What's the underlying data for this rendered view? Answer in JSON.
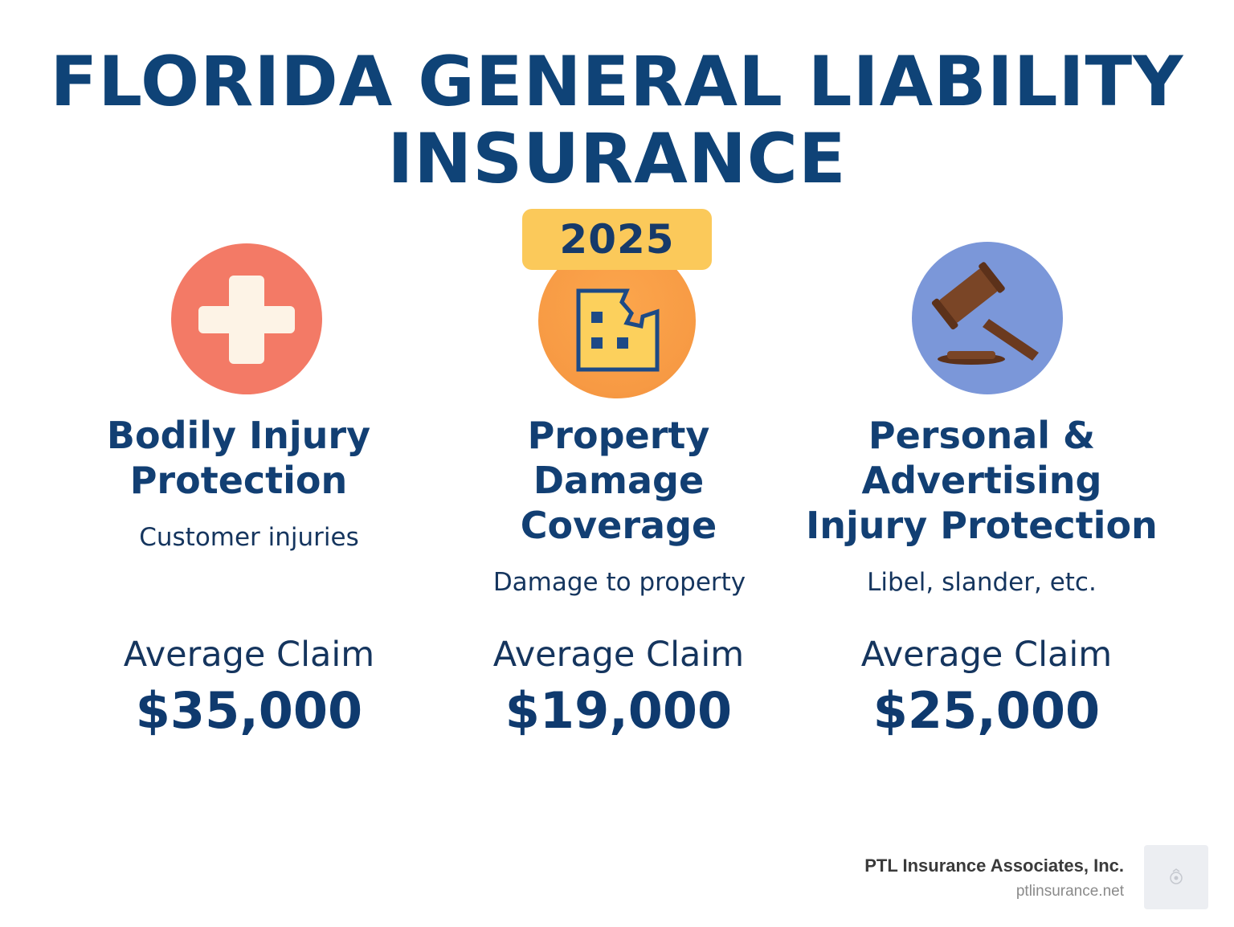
{
  "title": {
    "line1": "FLORIDA GENERAL LIABILITY",
    "line2": "INSURANCE"
  },
  "year_badge": "2025",
  "coverages": [
    {
      "icon": "medical-cross-icon",
      "heading_lines": [
        "Bodily Injury",
        "Protection"
      ],
      "description": "Customer injuries",
      "claim_label": "Average Claim",
      "claim_value": "$35,000",
      "color": "#f37a66"
    },
    {
      "icon": "damaged-building-icon",
      "heading_lines": [
        "Property",
        "Damage",
        "Coverage"
      ],
      "description": "Damage to property",
      "claim_label": "Average Claim",
      "claim_value": "$19,000",
      "color": "#f79a44"
    },
    {
      "icon": "gavel-icon",
      "heading_lines": [
        "Personal &",
        "Advertising",
        "Injury Protection"
      ],
      "description": "Libel, slander, etc.",
      "claim_label": "Average Claim",
      "claim_value": "$25,000",
      "color": "#7b97d9"
    }
  ],
  "brand": {
    "name": "PTL Insurance Associates, Inc.",
    "url": "ptlinsurance.net",
    "logo_icon": "ptl-logo-icon"
  },
  "colors": {
    "title": "#0f4377",
    "badge": "#fbc95a",
    "text": "#15355e"
  }
}
